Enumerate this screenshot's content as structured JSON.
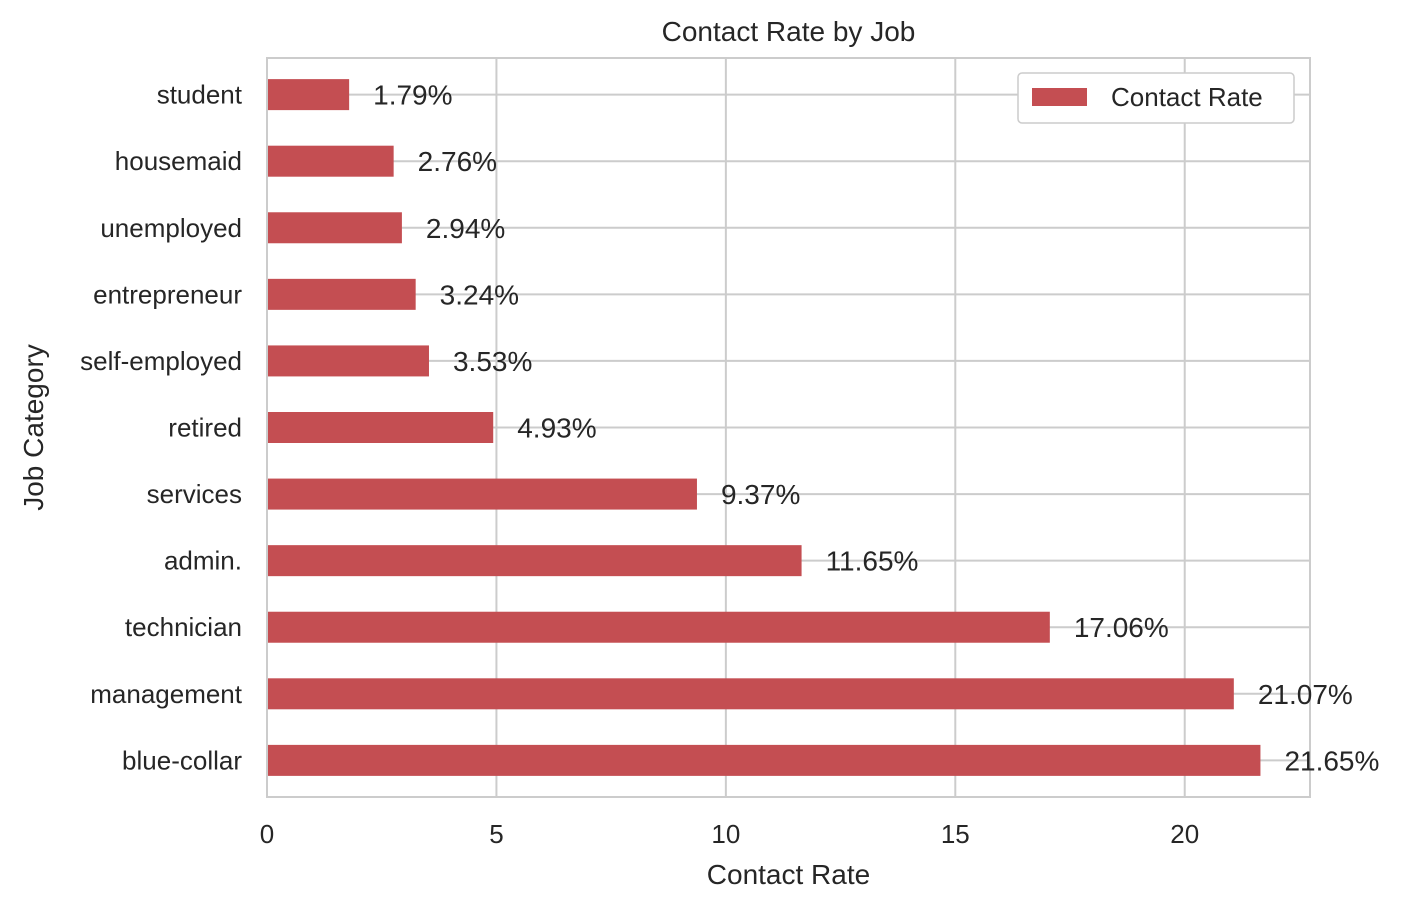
{
  "chart_data": {
    "type": "bar",
    "orientation": "horizontal",
    "title": "Contact Rate by Job",
    "xlabel": "Contact Rate",
    "ylabel": "Job Category",
    "categories": [
      "blue-collar",
      "management",
      "technician",
      "admin.",
      "services",
      "retired",
      "self-employed",
      "entrepreneur",
      "unemployed",
      "housemaid",
      "student"
    ],
    "series": [
      {
        "name": "Contact Rate",
        "color": "#c44e52",
        "values": [
          21.65,
          21.07,
          17.06,
          11.65,
          9.37,
          4.93,
          3.53,
          3.24,
          2.94,
          2.76,
          1.79
        ]
      }
    ],
    "data_labels": [
      "21.65%",
      "21.07%",
      "17.06%",
      "11.65%",
      "9.37%",
      "4.93%",
      "3.53%",
      "3.24%",
      "2.94%",
      "2.76%",
      "1.79%"
    ],
    "xlim": [
      0,
      22.73
    ],
    "xticks": [
      0,
      5,
      10,
      15,
      20
    ],
    "xtick_labels": [
      "0",
      "5",
      "10",
      "15",
      "20"
    ],
    "grid": true,
    "legend_position": "top-right"
  }
}
